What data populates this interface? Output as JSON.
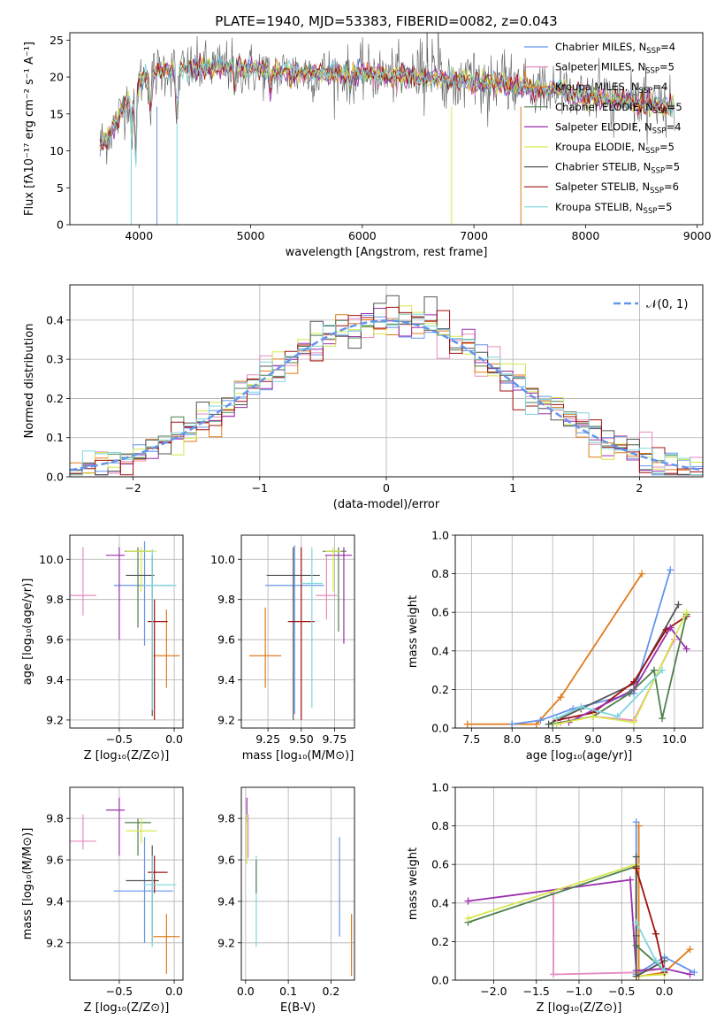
{
  "suptitle": "PLATE=1940, MJD=53383, FIBERID=0082, z=0.043",
  "colors": {
    "MILES": [
      "#6495ed",
      "#e88abf",
      "#4a4a8a"
    ],
    "ELODIE": [
      "#4f7f4f",
      "#9b2fae",
      "#d6e64a"
    ],
    "STELIB": [
      "#555555",
      "#a01010",
      "#7fd6dc"
    ],
    "extra": [
      "#e07b1a"
    ]
  },
  "legend": [
    {
      "label": "Chabrier MILES, N",
      "sub": "SSP",
      "tail": "=4",
      "color": "#6495ed"
    },
    {
      "label": "Salpeter MILES, N",
      "sub": "SSP",
      "tail": "=5",
      "color": "#e88abf"
    },
    {
      "label": "Kroupa MILES, N",
      "sub": "SSP",
      "tail": "=4",
      "color": "#e07b1a"
    },
    {
      "label": "Chabrier ELODIE, N",
      "sub": "SSP",
      "tail": "=5",
      "color": "#4f7f4f"
    },
    {
      "label": "Salpeter ELODIE, N",
      "sub": "SSP",
      "tail": "=4",
      "color": "#9b2fae"
    },
    {
      "label": "Kroupa ELODIE, N",
      "sub": "SSP",
      "tail": "=5",
      "color": "#d6e64a"
    },
    {
      "label": "Chabrier STELIB, N",
      "sub": "SSP",
      "tail": "=5",
      "color": "#555555"
    },
    {
      "label": "Salpeter STELIB, N",
      "sub": "SSP",
      "tail": "=6",
      "color": "#a01010"
    },
    {
      "label": "Kroupa STELIB, N",
      "sub": "SSP",
      "tail": "=5",
      "color": "#7fd6dc"
    }
  ],
  "chart_data": [
    {
      "id": "spectrum",
      "type": "line",
      "xlabel": "wavelength [Angstrom, rest frame]",
      "ylabel": "Flux [fλ10⁻¹⁷ erg cm⁻² s⁻¹ A⁻¹]",
      "xlim": [
        3380,
        9050
      ],
      "ylim": [
        0,
        26
      ],
      "xticks": [
        4000,
        5000,
        6000,
        7000,
        8000,
        9000
      ],
      "yticks": [
        0,
        5,
        10,
        15,
        20,
        25
      ],
      "continuum": [
        [
          3650,
          11
        ],
        [
          3720,
          12
        ],
        [
          3800,
          14
        ],
        [
          3900,
          17
        ],
        [
          3950,
          19
        ],
        [
          4050,
          20
        ],
        [
          4200,
          21
        ],
        [
          4500,
          21
        ],
        [
          4800,
          21.5
        ],
        [
          5000,
          21
        ],
        [
          5500,
          20.5
        ],
        [
          6000,
          20.5
        ],
        [
          6500,
          20
        ],
        [
          7000,
          19.5
        ],
        [
          7500,
          18.5
        ],
        [
          8000,
          17.5
        ],
        [
          8500,
          16.3
        ],
        [
          8800,
          16
        ]
      ],
      "dips": [
        [
          3933,
          12
        ],
        [
          3968,
          8
        ],
        [
          4102,
          15
        ],
        [
          4340,
          14
        ],
        [
          4861,
          18
        ],
        [
          5175,
          18
        ],
        [
          5890,
          18.5
        ]
      ]
    },
    {
      "id": "residuals",
      "type": "histogram",
      "xlabel": "(data-model)/error",
      "ylabel": "Normed distribution",
      "xlim": [
        -2.5,
        2.5
      ],
      "ylim": [
        0,
        0.49
      ],
      "xticks": [
        -2,
        -1,
        0,
        1,
        2
      ],
      "yticks": [
        0.0,
        0.1,
        0.2,
        0.3,
        0.4
      ],
      "grid": true,
      "legend": [
        {
          "label": "𝒩(0, 1)",
          "style": "dashed",
          "color": "#6495ed"
        }
      ],
      "bin_width": 0.1,
      "model": "normal(0,1)"
    },
    {
      "id": "age-vs-Z",
      "type": "errorbar",
      "xlabel": "Z [log₁₀(Z/Z⊙)]",
      "ylabel": "age  [log₁₀(age/yr)]",
      "xlim": [
        -0.95,
        0.08
      ],
      "ylim": [
        9.16,
        10.12
      ],
      "xticks": [
        -0.5,
        0.0
      ],
      "yticks": [
        9.2,
        9.4,
        9.6,
        9.8,
        10.0
      ],
      "grid": true,
      "points": [
        {
          "x": -0.27,
          "y": 9.87,
          "xerr": [
            0.28,
            0.26
          ],
          "yerr": [
            0.3,
            0.22
          ],
          "color": "#6495ed"
        },
        {
          "x": -0.83,
          "y": 9.82,
          "xerr": [
            0.12,
            0.12
          ],
          "yerr": [
            0.1,
            0.24
          ],
          "color": "#e88abf"
        },
        {
          "x": -0.07,
          "y": 9.52,
          "xerr": [
            0.12,
            0.12
          ],
          "yerr": [
            0.16,
            0.23
          ],
          "color": "#e07b1a"
        },
        {
          "x": -0.33,
          "y": 10.04,
          "xerr": [
            0.12,
            0.12
          ],
          "yerr": [
            0.38,
            0.02
          ],
          "color": "#4f7f4f"
        },
        {
          "x": -0.5,
          "y": 10.02,
          "xerr": [
            0.12,
            0.05
          ],
          "yerr": [
            0.42,
            0.04
          ],
          "color": "#9b2fae"
        },
        {
          "x": -0.3,
          "y": 10.04,
          "xerr": [
            0.14,
            0.14
          ],
          "yerr": [
            0.2,
            0.02
          ],
          "color": "#d6e64a"
        },
        {
          "x": -0.2,
          "y": 9.92,
          "xerr": [
            0.24,
            0.02
          ],
          "yerr": [
            0.7,
            0.1
          ],
          "color": "#555555"
        },
        {
          "x": -0.18,
          "y": 9.69,
          "xerr": [
            0.06,
            0.12
          ],
          "yerr": [
            0.49,
            0.11
          ],
          "color": "#a01010"
        },
        {
          "x": -0.2,
          "y": 9.87,
          "xerr": [
            0.08,
            0.22
          ],
          "yerr": [
            0.62,
            0.18
          ],
          "color": "#7fd6dc"
        }
      ]
    },
    {
      "id": "age-vs-mass",
      "type": "errorbar",
      "xlabel": "mass [log₁₀(M/M⊙)]",
      "ylabel": "",
      "xlim": [
        9.05,
        9.9
      ],
      "ylim": [
        9.16,
        10.12
      ],
      "xticks": [
        9.25,
        9.5,
        9.75
      ],
      "yticks": [
        9.2,
        9.4,
        9.6,
        9.8,
        10.0
      ],
      "grid": true,
      "points": [
        {
          "x": 9.45,
          "y": 9.87,
          "xerr": [
            0.22,
            0.22
          ],
          "yerr": [
            0.64,
            0.2
          ],
          "color": "#6495ed"
        },
        {
          "x": 9.69,
          "y": 9.82,
          "xerr": [
            0.08,
            0.08
          ],
          "yerr": [
            0.12,
            0.2
          ],
          "color": "#e88abf"
        },
        {
          "x": 9.23,
          "y": 9.52,
          "xerr": [
            0.12,
            0.12
          ],
          "yerr": [
            0.16,
            0.24
          ],
          "color": "#e07b1a"
        },
        {
          "x": 9.78,
          "y": 10.04,
          "xerr": [
            0.12,
            0.06
          ],
          "yerr": [
            0.4,
            0.02
          ],
          "color": "#4f7f4f"
        },
        {
          "x": 9.82,
          "y": 10.02,
          "xerr": [
            0.14,
            0.06
          ],
          "yerr": [
            0.44,
            0.04
          ],
          "color": "#9b2fae"
        },
        {
          "x": 9.74,
          "y": 10.04,
          "xerr": [
            0.06,
            0.06
          ],
          "yerr": [
            0.2,
            0.02
          ],
          "color": "#d6e64a"
        },
        {
          "x": 9.44,
          "y": 9.92,
          "xerr": [
            0.2,
            0.2
          ],
          "yerr": [
            0.72,
            0.14
          ],
          "color": "#555555"
        },
        {
          "x": 9.5,
          "y": 9.69,
          "xerr": [
            0.1,
            0.1
          ],
          "yerr": [
            0.49,
            0.37
          ],
          "color": "#a01010"
        },
        {
          "x": 9.58,
          "y": 9.88,
          "xerr": [
            0.08,
            0.08
          ],
          "yerr": [
            0.62,
            0.18
          ],
          "color": "#7fd6dc"
        }
      ]
    },
    {
      "id": "weight-vs-age",
      "type": "line",
      "xlabel": "age  [log₁₀(age/yr)]",
      "ylabel": "mass weight",
      "xlim": [
        7.3,
        10.35
      ],
      "ylim": [
        0,
        1
      ],
      "xticks": [
        7.5,
        8.0,
        8.5,
        9.0,
        9.5,
        10.0
      ],
      "yticks": [
        0.0,
        0.2,
        0.4,
        0.6,
        0.8,
        1.0
      ],
      "grid": true,
      "series": [
        {
          "color": "#e07b1a",
          "x": [
            7.45,
            8.0,
            8.3,
            8.6,
            9.6
          ],
          "y": [
            0.02,
            0.02,
            0.02,
            0.16,
            0.8
          ]
        },
        {
          "color": "#6495ed",
          "x": [
            8.0,
            8.35,
            8.75,
            9.5,
            9.95
          ],
          "y": [
            0.02,
            0.04,
            0.1,
            0.18,
            0.82
          ]
        },
        {
          "color": "#e88abf",
          "x": [
            8.6,
            9.0,
            9.5,
            10.0
          ],
          "y": [
            0.03,
            0.06,
            0.04,
            0.46
          ]
        },
        {
          "color": "#555555",
          "x": [
            8.45,
            8.85,
            9.5,
            10.05
          ],
          "y": [
            0.02,
            0.1,
            0.23,
            0.64
          ]
        },
        {
          "color": "#a01010",
          "x": [
            8.55,
            9.0,
            9.5,
            9.9,
            10.15
          ],
          "y": [
            0.04,
            0.08,
            0.24,
            0.51,
            0.58
          ]
        },
        {
          "color": "#9b2fae",
          "x": [
            8.7,
            9.5,
            9.95,
            10.15
          ],
          "y": [
            0.03,
            0.2,
            0.52,
            0.41
          ]
        },
        {
          "color": "#4f7f4f",
          "x": [
            8.5,
            9.0,
            9.45,
            9.75,
            9.85,
            10.15
          ],
          "y": [
            0.02,
            0.06,
            0.18,
            0.3,
            0.05,
            0.59
          ]
        },
        {
          "color": "#d6e64a",
          "x": [
            8.55,
            9.0,
            9.5,
            10.15
          ],
          "y": [
            0.02,
            0.06,
            0.03,
            0.6
          ]
        },
        {
          "color": "#7fd6dc",
          "x": [
            8.55,
            8.85,
            9.3,
            9.85
          ],
          "y": [
            0.05,
            0.11,
            0.06,
            0.3
          ]
        }
      ]
    },
    {
      "id": "mass-vs-Z",
      "type": "errorbar",
      "xlabel": "Z [log₁₀(Z/Z⊙)]",
      "ylabel": "mass [log₁₀(M/M⊙)]",
      "xlim": [
        -0.95,
        0.08
      ],
      "ylim": [
        9.02,
        9.95
      ],
      "xticks": [
        -0.5,
        0.0
      ],
      "yticks": [
        9.2,
        9.4,
        9.6,
        9.8
      ],
      "grid": true,
      "points": [
        {
          "x": -0.27,
          "y": 9.45,
          "xerr": [
            0.28,
            0.26
          ],
          "yerr": [
            0.25,
            0.26
          ],
          "color": "#6495ed"
        },
        {
          "x": -0.83,
          "y": 9.69,
          "xerr": [
            0.12,
            0.12
          ],
          "yerr": [
            0.04,
            0.13
          ],
          "color": "#e88abf"
        },
        {
          "x": -0.07,
          "y": 9.23,
          "xerr": [
            0.12,
            0.12
          ],
          "yerr": [
            0.18,
            0.11
          ],
          "color": "#e07b1a"
        },
        {
          "x": -0.33,
          "y": 9.78,
          "xerr": [
            0.12,
            0.12
          ],
          "yerr": [
            0.16,
            0.02
          ],
          "color": "#4f7f4f"
        },
        {
          "x": -0.5,
          "y": 9.84,
          "xerr": [
            0.12,
            0.05
          ],
          "yerr": [
            0.22,
            0.06
          ],
          "color": "#9b2fae"
        },
        {
          "x": -0.3,
          "y": 9.74,
          "xerr": [
            0.14,
            0.14
          ],
          "yerr": [
            0.06,
            0.06
          ],
          "color": "#d6e64a"
        },
        {
          "x": -0.2,
          "y": 9.5,
          "xerr": [
            0.24,
            0.06
          ],
          "yerr": [
            0.3,
            0.17
          ],
          "color": "#555555"
        },
        {
          "x": -0.18,
          "y": 9.54,
          "xerr": [
            0.06,
            0.12
          ],
          "yerr": [
            0.1,
            0.08
          ],
          "color": "#a01010"
        },
        {
          "x": -0.2,
          "y": 9.48,
          "xerr": [
            0.08,
            0.22
          ],
          "yerr": [
            0.3,
            0.14
          ],
          "color": "#7fd6dc"
        }
      ]
    },
    {
      "id": "mass-vs-EBV",
      "type": "errorbar",
      "xlabel": "E(B-V)",
      "ylabel": "",
      "xlim": [
        -0.01,
        0.255
      ],
      "ylim": [
        9.02,
        9.95
      ],
      "xticks": [
        0.0,
        0.1,
        0.2
      ],
      "yticks": [
        9.2,
        9.4,
        9.6,
        9.8
      ],
      "grid": true,
      "points": [
        {
          "x": 0.22,
          "y": 9.45,
          "xerr": [
            0,
            0
          ],
          "yerr": [
            0.22,
            0.26
          ],
          "color": "#6495ed"
        },
        {
          "x": 0.006,
          "y": 9.73,
          "xerr": [
            0,
            0
          ],
          "yerr": [
            0.12,
            0.09
          ],
          "color": "#e88abf"
        },
        {
          "x": 0.248,
          "y": 9.2,
          "xerr": [
            0,
            0
          ],
          "yerr": [
            0.16,
            0.14
          ],
          "color": "#e07b1a"
        },
        {
          "x": 0.003,
          "y": 9.84,
          "xerr": [
            0,
            0
          ],
          "yerr": [
            0.06,
            0.06
          ],
          "color": "#9b2fae"
        },
        {
          "x": 0.003,
          "y": 9.76,
          "xerr": [
            0,
            0
          ],
          "yerr": [
            0.18,
            0.06
          ],
          "color": "#d6e64a"
        },
        {
          "x": 0.025,
          "y": 9.48,
          "xerr": [
            0,
            0
          ],
          "yerr": [
            0.3,
            0.14
          ],
          "color": "#7fd6dc"
        },
        {
          "x": 0.025,
          "y": 9.52,
          "xerr": [
            0,
            0
          ],
          "yerr": [
            0.08,
            0.08
          ],
          "color": "#4f7f4f"
        }
      ]
    },
    {
      "id": "weight-vs-Z",
      "type": "line",
      "xlabel": "Z [log₁₀(Z/Z⊙)]",
      "ylabel": "mass weight",
      "xlim": [
        -2.45,
        0.45
      ],
      "ylim": [
        0,
        1
      ],
      "xticks": [
        -2.0,
        -1.5,
        -1.0,
        -0.5,
        0.0
      ],
      "yticks": [
        0.0,
        0.2,
        0.4,
        0.6,
        0.8,
        1.0
      ],
      "grid": true,
      "series": [
        {
          "color": "#e88abf",
          "x": [
            -1.3,
            -1.3,
            -0.33,
            0.0
          ],
          "y": [
            0.45,
            0.03,
            0.04,
            0.06
          ]
        },
        {
          "color": "#6495ed",
          "x": [
            -0.33,
            -0.33,
            -0.33,
            0.0,
            0.35
          ],
          "y": [
            0.82,
            0.18,
            0.03,
            0.12,
            0.04
          ]
        },
        {
          "color": "#e07b1a",
          "x": [
            -0.3,
            -0.3,
            0.0,
            0.3
          ],
          "y": [
            0.8,
            0.02,
            0.04,
            0.16
          ]
        },
        {
          "color": "#9b2fae",
          "x": [
            -2.3,
            -0.4,
            -0.33,
            0.0,
            0.3
          ],
          "y": [
            0.41,
            0.52,
            0.05,
            0.06,
            0.03
          ]
        },
        {
          "color": "#4f7f4f",
          "x": [
            -2.3,
            -0.33,
            -0.33,
            0.0
          ],
          "y": [
            0.3,
            0.59,
            0.18,
            0.05
          ]
        },
        {
          "color": "#d6e64a",
          "x": [
            -2.3,
            -0.33,
            -0.33,
            0.0
          ],
          "y": [
            0.32,
            0.6,
            0.02,
            0.03
          ]
        },
        {
          "color": "#555555",
          "x": [
            -0.33,
            -0.33,
            -0.33,
            0.0
          ],
          "y": [
            0.64,
            0.23,
            0.02,
            0.1
          ]
        },
        {
          "color": "#a01010",
          "x": [
            -0.33,
            -0.1,
            0.0
          ],
          "y": [
            0.58,
            0.24,
            0.04
          ]
        },
        {
          "color": "#7fd6dc",
          "x": [
            -0.33,
            -0.1,
            0.0
          ],
          "y": [
            0.3,
            0.1,
            0.05
          ]
        }
      ]
    }
  ]
}
